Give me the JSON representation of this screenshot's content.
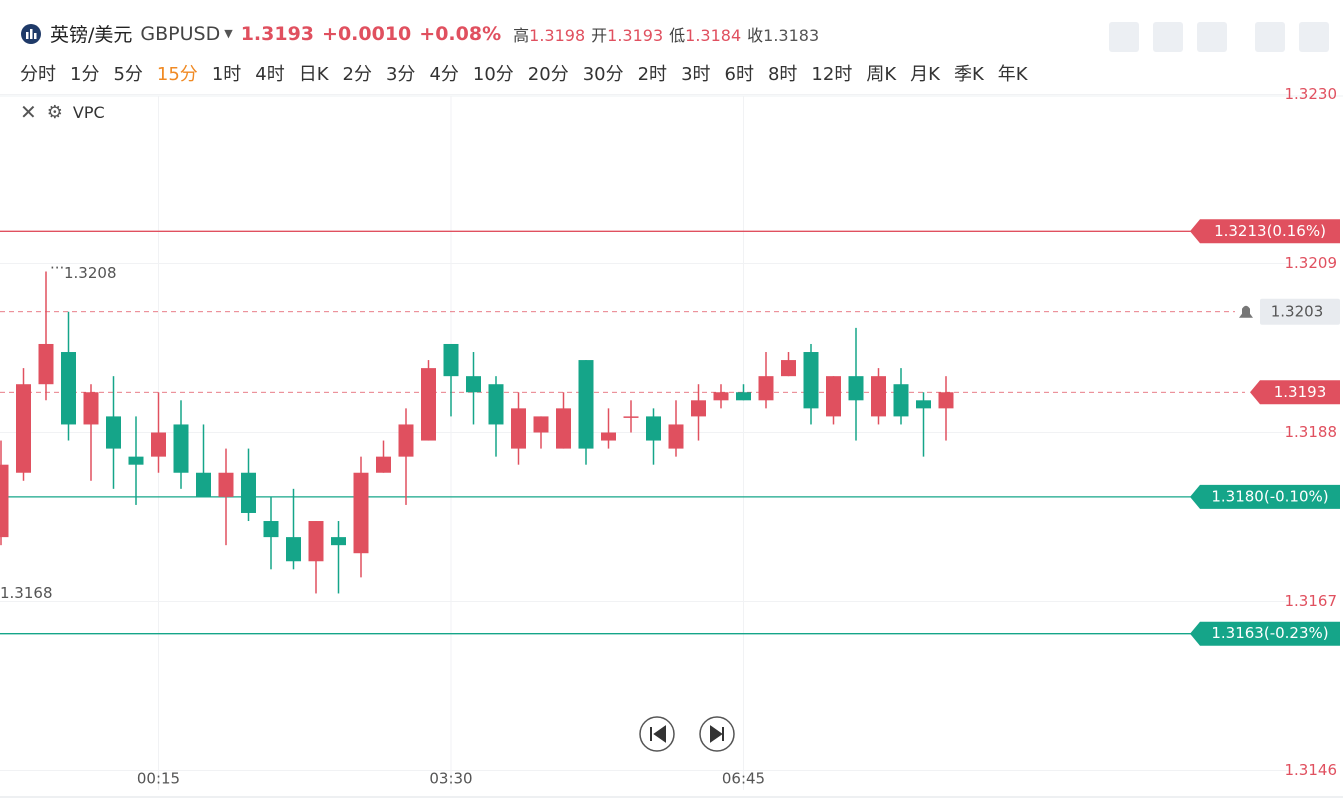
{
  "header": {
    "symbol_name": "英镑/美元",
    "symbol_code": "GBPUSD",
    "price": "1.3193",
    "change": "+0.0010",
    "change_pct": "+0.08%",
    "ohlc": [
      {
        "label": "高",
        "value": "1.3198"
      },
      {
        "label": "开",
        "value": "1.3193"
      },
      {
        "label": "低",
        "value": "1.3184"
      },
      {
        "label": "收",
        "value": "1.3183"
      }
    ],
    "timeframes": [
      "分时",
      "1分",
      "5分",
      "15分",
      "1时",
      "4时",
      "日K",
      "2分",
      "3分",
      "4分",
      "10分",
      "20分",
      "30分",
      "2时",
      "3时",
      "6时",
      "8时",
      "12时",
      "周K",
      "月K",
      "季K",
      "年K"
    ],
    "active_timeframe": "15分",
    "indicator": "VPC"
  },
  "chart_data": {
    "type": "candlestick",
    "categories": [
      null,
      null,
      null,
      null,
      null,
      null,
      null,
      "00:15",
      null,
      null,
      null,
      null,
      null,
      null,
      null,
      null,
      null,
      null,
      null,
      null,
      "03:30",
      null,
      null,
      null,
      null,
      null,
      null,
      null,
      null,
      null,
      null,
      null,
      null,
      "06:45",
      null,
      null,
      null,
      null,
      null,
      null,
      null,
      null,
      null
    ],
    "open": [
      1.3175,
      1.3183,
      1.3194,
      1.3198,
      1.3189,
      1.319,
      1.3185,
      1.3185,
      1.3189,
      1.3183,
      1.318,
      1.3183,
      1.3177,
      1.3175,
      1.3172,
      1.3175,
      1.3173,
      1.3183,
      1.3185,
      1.3187,
      1.3199,
      1.3195,
      1.3194,
      1.3186,
      1.3188,
      1.3186,
      1.3197,
      1.3187,
      1.319,
      1.319,
      1.3186,
      1.319,
      1.3192,
      1.3193,
      1.3192,
      1.3195,
      1.3198,
      1.319,
      1.3195,
      1.319,
      1.3194,
      1.3192,
      1.3191
    ],
    "high": [
      1.3187,
      1.3196,
      1.3208,
      1.3203,
      1.3194,
      1.3195,
      1.319,
      1.3193,
      1.3192,
      1.3189,
      1.3186,
      1.3186,
      1.318,
      1.3181,
      1.3177,
      1.3177,
      1.3185,
      1.3187,
      1.3191,
      1.3197,
      1.3199,
      1.3198,
      1.3195,
      1.3193,
      1.319,
      1.3193,
      1.3197,
      1.3191,
      1.3192,
      1.3191,
      1.3192,
      1.3194,
      1.3194,
      1.3194,
      1.3198,
      1.3198,
      1.3199,
      1.3195,
      1.3201,
      1.3196,
      1.3196,
      1.3193,
      1.3195
    ],
    "low": [
      1.3174,
      1.3182,
      1.3192,
      1.3187,
      1.3182,
      1.3181,
      1.3179,
      1.3183,
      1.3181,
      1.318,
      1.3174,
      1.3177,
      1.3171,
      1.3171,
      1.3168,
      1.3168,
      1.317,
      1.3183,
      1.3179,
      1.3187,
      1.319,
      1.3189,
      1.3185,
      1.3184,
      1.3186,
      1.3186,
      1.3184,
      1.3186,
      1.3188,
      1.3184,
      1.3185,
      1.3187,
      1.3191,
      1.3192,
      1.3191,
      1.3195,
      1.3189,
      1.3189,
      1.3187,
      1.3189,
      1.3189,
      1.3185,
      1.3187
    ],
    "close": [
      1.3184,
      1.3194,
      1.3199,
      1.3189,
      1.3193,
      1.3186,
      1.3184,
      1.3188,
      1.3183,
      1.318,
      1.3183,
      1.3178,
      1.3175,
      1.3172,
      1.3177,
      1.3174,
      1.3183,
      1.3185,
      1.3189,
      1.3196,
      1.3195,
      1.3193,
      1.3189,
      1.3191,
      1.319,
      1.3191,
      1.3186,
      1.3188,
      1.319,
      1.3187,
      1.3189,
      1.3192,
      1.3193,
      1.3192,
      1.3195,
      1.3197,
      1.3191,
      1.3195,
      1.3192,
      1.3195,
      1.319,
      1.3191,
      1.3193
    ],
    "up_color": "#e0505f",
    "down_color": "#15a589",
    "ylim": [
      1.3146,
      1.323
    ],
    "yticks": [
      1.3146,
      1.3167,
      1.3188,
      1.3209,
      {
        "value": 1.323,
        "label": "1.3230"
      }
    ],
    "grid": true,
    "high_label": 1.3208,
    "low_label": 1.3168,
    "price_lines": [
      {
        "value": 1.3213,
        "label": "1.3213(0.16%)",
        "color": "#e0505f"
      },
      {
        "value": 1.318,
        "label": "1.3180(-0.10%)",
        "color": "#15a589"
      },
      {
        "value": 1.3163,
        "label": "1.3163(-0.23%)",
        "color": "#15a589"
      }
    ],
    "alert_line": 1.3203
  }
}
